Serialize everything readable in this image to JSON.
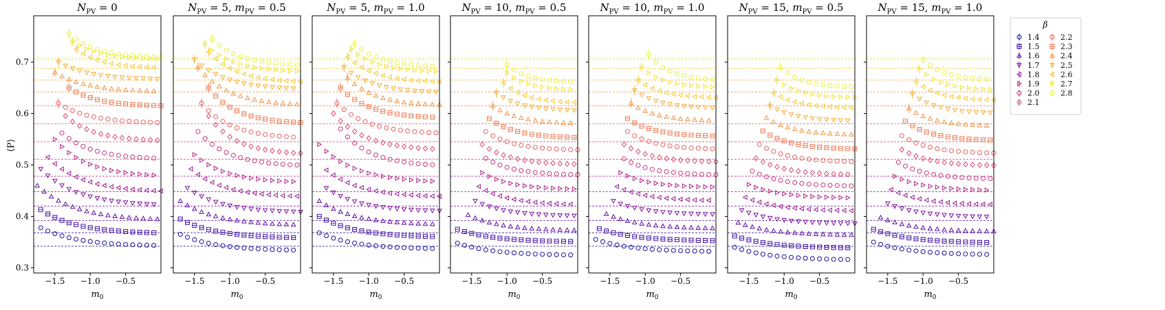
{
  "figure": {
    "ylabel": "⟨P⟩",
    "xlabel": "m₀",
    "legend": {
      "title": "β",
      "entries": [
        {
          "label": "1.4",
          "color": "#2a1fa0",
          "marker": "circle"
        },
        {
          "label": "1.5",
          "color": "#4b20a8",
          "marker": "square"
        },
        {
          "label": "1.6",
          "color": "#6a20a8",
          "marker": "triangle-up"
        },
        {
          "label": "1.7",
          "color": "#8722a4",
          "marker": "triangle-down"
        },
        {
          "label": "1.8",
          "color": "#a02a9c",
          "marker": "triangle-left"
        },
        {
          "label": "1.9",
          "color": "#b83291",
          "marker": "triangle-right"
        },
        {
          "label": "2.0",
          "color": "#cc4485",
          "marker": "circle"
        },
        {
          "label": "2.1",
          "color": "#dc5578",
          "marker": "diamond"
        },
        {
          "label": "2.2",
          "color": "#e86a6a",
          "marker": "circle"
        },
        {
          "label": "2.3",
          "color": "#f0805c",
          "marker": "square"
        },
        {
          "label": "2.4",
          "color": "#f69a4c",
          "marker": "triangle-up"
        },
        {
          "label": "2.5",
          "color": "#f8b23e",
          "marker": "triangle-down"
        },
        {
          "label": "2.6",
          "color": "#f6cc38",
          "marker": "triangle-left"
        },
        {
          "label": "2.7",
          "color": "#f2e43a",
          "marker": "triangle-right"
        },
        {
          "label": "2.8",
          "color": "#e8f540",
          "marker": "circle"
        }
      ]
    }
  },
  "chart_data": [
    {
      "type": "scatter",
      "title": "N_PV = 0",
      "first_x": [
        -1.7,
        -1.7,
        -1.75,
        -1.7,
        -1.6,
        -1.5,
        -1.4,
        -1.35,
        -1.45,
        -1.3,
        -1.5,
        -1.45,
        -1.2,
        -1.25,
        -1.3
      ],
      "series_min": [
        0.342,
        0.366,
        0.392,
        0.42,
        0.447,
        0.477,
        0.511,
        0.546,
        0.581,
        0.614,
        0.642,
        0.666,
        0.688,
        0.705,
        0.708
      ],
      "series_start": [
        0.378,
        0.413,
        0.46,
        0.492,
        0.515,
        0.55,
        0.562,
        0.595,
        0.62,
        0.65,
        0.68,
        0.7,
        0.725,
        0.74,
        0.755
      ],
      "reference_lines": [
        0.342,
        0.368,
        0.392,
        0.42,
        0.448,
        0.478,
        0.511,
        0.545,
        0.58,
        0.615,
        0.642,
        0.665,
        0.688,
        0.705,
        0.708
      ],
      "xlim": [
        -1.8,
        0.0
      ],
      "ylim": [
        0.29,
        0.79
      ]
    },
    {
      "type": "scatter",
      "title": "N_PV = 5, m_PV = 0.5",
      "first_x": [
        -1.7,
        -1.7,
        -1.7,
        -1.6,
        -1.55,
        -1.5,
        -1.45,
        -1.3,
        -1.4,
        -1.3,
        -1.45,
        -1.5,
        -1.3,
        -1.35,
        -1.25
      ],
      "series_min": [
        0.333,
        0.357,
        0.382,
        0.407,
        0.437,
        0.465,
        0.497,
        0.52,
        0.551,
        0.58,
        0.615,
        0.646,
        0.66,
        0.68,
        0.693
      ],
      "series_start": [
        0.365,
        0.395,
        0.43,
        0.455,
        0.492,
        0.52,
        0.565,
        0.595,
        0.62,
        0.65,
        0.69,
        0.705,
        0.72,
        0.735,
        0.745
      ],
      "reference_lines": [
        0.342,
        0.368,
        0.392,
        0.42,
        0.448,
        0.478,
        0.511,
        0.545,
        0.58,
        0.615,
        0.642,
        0.665,
        0.688,
        0.705,
        0.708
      ],
      "xlim": [
        -1.8,
        0.0
      ],
      "ylim": [
        0.29,
        0.79
      ]
    },
    {
      "type": "scatter",
      "title": "N_PV = 5, m_PV = 1.0",
      "first_x": [
        -1.7,
        -1.7,
        -1.7,
        -1.6,
        -1.6,
        -1.7,
        -1.4,
        -1.5,
        -1.45,
        -1.4,
        -1.3,
        -1.35,
        -1.3,
        -1.25,
        -1.2
      ],
      "series_min": [
        0.336,
        0.359,
        0.383,
        0.409,
        0.437,
        0.465,
        0.497,
        0.528,
        0.56,
        0.59,
        0.615,
        0.64,
        0.66,
        0.68,
        0.69
      ],
      "series_start": [
        0.368,
        0.4,
        0.43,
        0.455,
        0.49,
        0.54,
        0.57,
        0.6,
        0.62,
        0.65,
        0.67,
        0.69,
        0.71,
        0.725,
        0.735
      ],
      "reference_lines": [
        0.342,
        0.368,
        0.392,
        0.42,
        0.448,
        0.478,
        0.511,
        0.545,
        0.58,
        0.615,
        0.642,
        0.665,
        0.688,
        0.705,
        0.708
      ],
      "xlim": [
        -1.8,
        0.0
      ],
      "ylim": [
        0.29,
        0.79
      ]
    },
    {
      "type": "scatter",
      "title": "N_PV = 10, m_PV = 0.5",
      "first_x": [
        -1.7,
        -1.7,
        -1.55,
        -1.45,
        -1.4,
        -1.35,
        -1.3,
        -1.35,
        -1.3,
        -1.25,
        -1.2,
        -1.15,
        -1.05,
        -1.0,
        -1.0
      ],
      "series_min": [
        0.324,
        0.35,
        0.372,
        0.4,
        0.422,
        0.452,
        0.48,
        0.5,
        0.528,
        0.552,
        0.58,
        0.605,
        0.62,
        0.645,
        0.66
      ],
      "series_start": [
        0.348,
        0.375,
        0.403,
        0.43,
        0.458,
        0.485,
        0.513,
        0.54,
        0.565,
        0.59,
        0.615,
        0.64,
        0.66,
        0.68,
        0.695
      ],
      "reference_lines": [
        0.342,
        0.368,
        0.392,
        0.42,
        0.448,
        0.478,
        0.511,
        0.545,
        0.58,
        0.615,
        0.642,
        0.665,
        0.688,
        0.705,
        0.708
      ],
      "xlim": [
        -1.8,
        0.0
      ],
      "ylim": [
        0.29,
        0.79
      ]
    },
    {
      "type": "scatter",
      "title": "N_PV = 10, m_PV = 1.0",
      "first_x": [
        -1.7,
        -1.65,
        -1.55,
        -1.45,
        -1.4,
        -1.35,
        -1.3,
        -1.3,
        -1.25,
        -1.25,
        -1.2,
        -1.15,
        -1.1,
        -1.05,
        -0.95
      ],
      "series_min": [
        0.331,
        0.352,
        0.376,
        0.403,
        0.43,
        0.456,
        0.48,
        0.505,
        0.53,
        0.555,
        0.585,
        0.61,
        0.63,
        0.65,
        0.665
      ],
      "series_start": [
        0.355,
        0.376,
        0.405,
        0.43,
        0.458,
        0.485,
        0.512,
        0.54,
        0.565,
        0.59,
        0.62,
        0.645,
        0.665,
        0.69,
        0.715
      ],
      "reference_lines": [
        0.342,
        0.368,
        0.392,
        0.42,
        0.448,
        0.478,
        0.511,
        0.545,
        0.58,
        0.615,
        0.642,
        0.665,
        0.688,
        0.705,
        0.708
      ],
      "xlim": [
        -1.8,
        0.0
      ],
      "ylim": [
        0.29,
        0.79
      ]
    },
    {
      "type": "scatter",
      "title": "N_PV = 15, m_PV = 0.5",
      "first_x": [
        -1.7,
        -1.7,
        -1.65,
        -1.6,
        -1.55,
        -1.5,
        -1.45,
        -1.4,
        -1.35,
        -1.3,
        -1.25,
        -1.2,
        -1.15,
        -1.1,
        -1.05
      ],
      "series_min": [
        0.315,
        0.338,
        0.363,
        0.385,
        0.41,
        0.435,
        0.458,
        0.48,
        0.505,
        0.53,
        0.558,
        0.585,
        0.61,
        0.63,
        0.65
      ],
      "series_start": [
        0.34,
        0.362,
        0.388,
        0.412,
        0.437,
        0.462,
        0.488,
        0.513,
        0.54,
        0.566,
        0.592,
        0.615,
        0.64,
        0.665,
        0.69
      ],
      "reference_lines": [
        0.342,
        0.368,
        0.392,
        0.42,
        0.448,
        0.478,
        0.511,
        0.545,
        0.58,
        0.615,
        0.642,
        0.665,
        0.688,
        0.705,
        0.708
      ],
      "xlim": [
        -1.8,
        0.0
      ],
      "ylim": [
        0.29,
        0.79
      ]
    },
    {
      "type": "scatter",
      "title": "N_PV = 15, m_PV = 1.0",
      "first_x": [
        -1.7,
        -1.7,
        -1.6,
        -1.5,
        -1.45,
        -1.4,
        -1.35,
        -1.3,
        -1.3,
        -1.25,
        -1.2,
        -1.15,
        -1.1,
        -1.05,
        -1.0
      ],
      "series_min": [
        0.325,
        0.348,
        0.37,
        0.398,
        0.422,
        0.45,
        0.472,
        0.498,
        0.522,
        0.547,
        0.575,
        0.6,
        0.625,
        0.645,
        0.665
      ],
      "series_start": [
        0.35,
        0.375,
        0.398,
        0.425,
        0.452,
        0.478,
        0.505,
        0.53,
        0.557,
        0.585,
        0.61,
        0.638,
        0.662,
        0.687,
        0.705
      ],
      "reference_lines": [
        0.342,
        0.368,
        0.392,
        0.42,
        0.448,
        0.478,
        0.511,
        0.545,
        0.58,
        0.615,
        0.642,
        0.665,
        0.688,
        0.705,
        0.708
      ],
      "xlim": [
        -1.8,
        0.0
      ],
      "ylim": [
        0.29,
        0.79
      ]
    }
  ],
  "axes": {
    "xticks": [
      -1.5,
      -1.0,
      -0.5
    ],
    "xtick_labels": [
      "−1.5",
      "−1.0",
      "−0.5"
    ],
    "yticks": [
      0.3,
      0.4,
      0.5,
      0.6,
      0.7
    ],
    "ytick_labels": [
      "0.3",
      "0.4",
      "0.5",
      "0.6",
      "0.7"
    ]
  }
}
